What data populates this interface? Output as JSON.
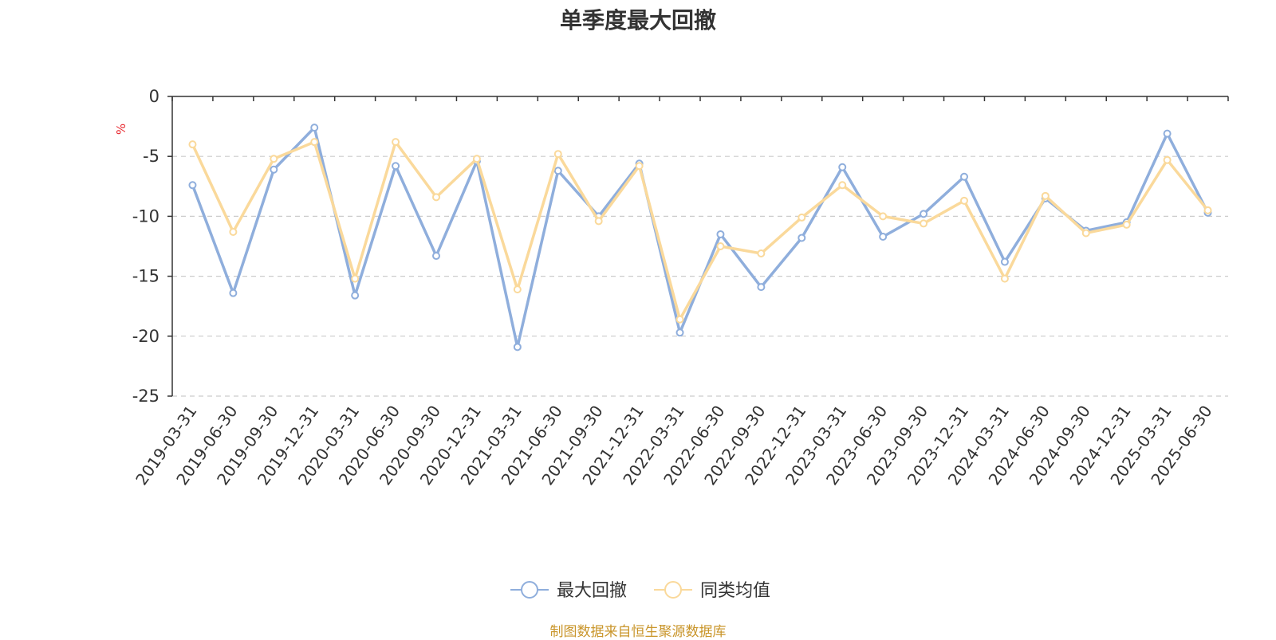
{
  "chart_data": {
    "type": "line",
    "title": "单季度最大回撤",
    "ylabel": "%",
    "ylim": [
      -25,
      0
    ],
    "yticks": [
      0,
      -5,
      -10,
      -15,
      -20,
      -25
    ],
    "grid": true,
    "legend_position": "bottom",
    "categories": [
      "2019-03-31",
      "2019-06-30",
      "2019-09-30",
      "2019-12-31",
      "2020-03-31",
      "2020-06-30",
      "2020-09-30",
      "2020-12-31",
      "2021-03-31",
      "2021-06-30",
      "2021-09-30",
      "2021-12-31",
      "2022-03-31",
      "2022-06-30",
      "2022-09-30",
      "2022-12-31",
      "2023-03-31",
      "2023-06-30",
      "2023-09-30",
      "2023-12-31",
      "2024-03-31",
      "2024-06-30",
      "2024-09-30",
      "2024-12-31",
      "2025-03-31",
      "2025-06-30"
    ],
    "series": [
      {
        "name": "最大回撤",
        "color": "#8faedc",
        "values": [
          -7.4,
          -16.4,
          -6.1,
          -2.6,
          -16.6,
          -5.8,
          -13.3,
          -5.4,
          -20.9,
          -6.2,
          -10.0,
          -5.6,
          -19.7,
          -11.5,
          -15.9,
          -11.8,
          -5.9,
          -11.7,
          -9.8,
          -6.7,
          -13.8,
          -8.5,
          -11.2,
          -10.5,
          -3.1,
          -9.7
        ]
      },
      {
        "name": "同类均值",
        "color": "#fad99b",
        "values": [
          -4.0,
          -11.3,
          -5.2,
          -3.8,
          -15.2,
          -3.8,
          -8.4,
          -5.2,
          -16.1,
          -4.8,
          -10.4,
          -5.8,
          -18.6,
          -12.5,
          -13.1,
          -10.1,
          -7.4,
          -10.0,
          -10.6,
          -8.7,
          -15.2,
          -8.3,
          -11.4,
          -10.7,
          -5.3,
          -9.5
        ]
      }
    ]
  },
  "source_text": "制图数据来自恒生聚源数据库"
}
